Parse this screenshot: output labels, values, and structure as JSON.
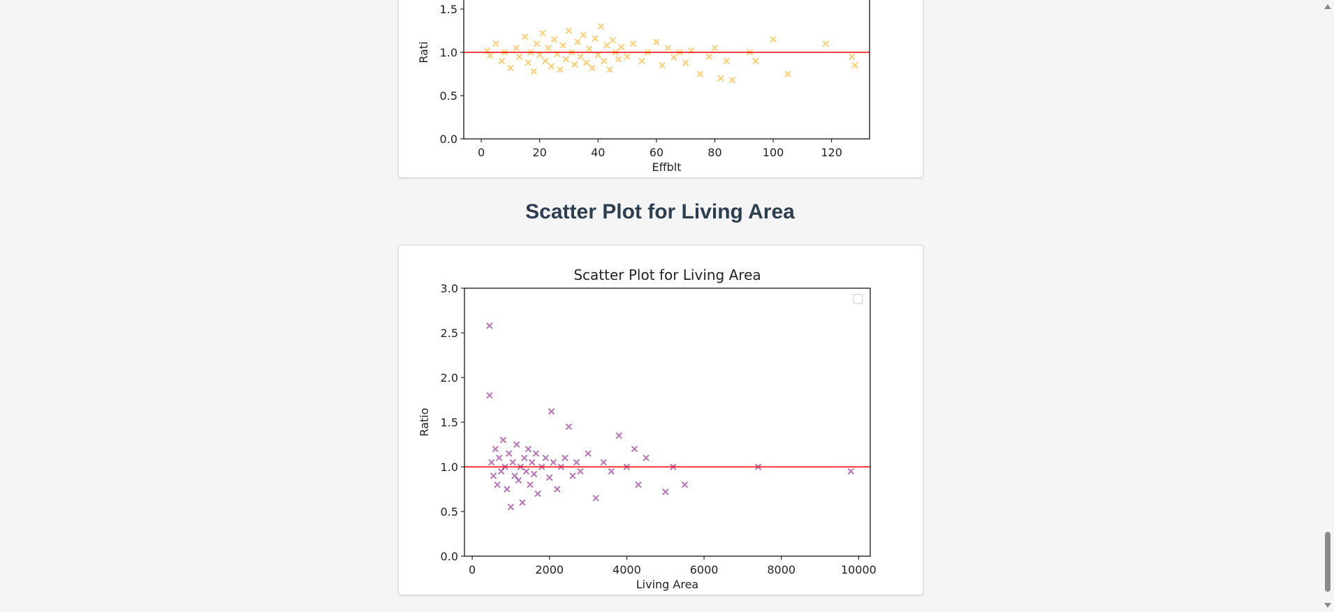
{
  "colors": {
    "page_bg": "#f5f5f5",
    "heading": "#2c3e50",
    "orange_series": "#ffa500",
    "purple_series": "#800080",
    "reference_line": "#ff0000"
  },
  "section2": {
    "heading": "Scatter Plot for Living Area"
  },
  "chart_data": [
    {
      "type": "scatter",
      "title": "",
      "xlabel": "Effblt",
      "ylabel": "Rati",
      "xlim": [
        -6,
        133
      ],
      "ylim": [
        0,
        2.0
      ],
      "xticks": [
        "0",
        "20",
        "40",
        "60",
        "80",
        "100",
        "120"
      ],
      "yticks": [
        "0.0",
        "0.5",
        "1.0",
        "1.5"
      ],
      "marker": "x",
      "reference_line_y": 1.0,
      "series": [
        {
          "color": "#ffa500",
          "points": [
            [
              2,
              1.02
            ],
            [
              3,
              0.96
            ],
            [
              5,
              1.1
            ],
            [
              7,
              0.9
            ],
            [
              8,
              1.0
            ],
            [
              10,
              0.82
            ],
            [
              12,
              1.05
            ],
            [
              13,
              0.95
            ],
            [
              15,
              1.18
            ],
            [
              16,
              0.88
            ],
            [
              17,
              1.0
            ],
            [
              18,
              0.78
            ],
            [
              19,
              1.1
            ],
            [
              20,
              0.97
            ],
            [
              21,
              1.22
            ],
            [
              22,
              0.9
            ],
            [
              23,
              1.05
            ],
            [
              24,
              0.84
            ],
            [
              25,
              1.15
            ],
            [
              26,
              0.98
            ],
            [
              27,
              0.8
            ],
            [
              28,
              1.08
            ],
            [
              29,
              0.92
            ],
            [
              30,
              1.25
            ],
            [
              31,
              1.0
            ],
            [
              32,
              0.86
            ],
            [
              33,
              1.12
            ],
            [
              34,
              0.95
            ],
            [
              35,
              1.2
            ],
            [
              36,
              0.88
            ],
            [
              37,
              1.04
            ],
            [
              38,
              0.82
            ],
            [
              39,
              1.16
            ],
            [
              40,
              0.97
            ],
            [
              41,
              1.3
            ],
            [
              42,
              0.9
            ],
            [
              43,
              1.08
            ],
            [
              44,
              0.8
            ],
            [
              45,
              1.14
            ],
            [
              46,
              1.0
            ],
            [
              47,
              0.92
            ],
            [
              48,
              1.06
            ],
            [
              50,
              0.95
            ],
            [
              52,
              1.1
            ],
            [
              55,
              0.9
            ],
            [
              57,
              1.0
            ],
            [
              60,
              1.12
            ],
            [
              62,
              0.85
            ],
            [
              64,
              1.05
            ],
            [
              66,
              0.94
            ],
            [
              68,
              1.0
            ],
            [
              70,
              0.88
            ],
            [
              72,
              1.02
            ],
            [
              75,
              0.75
            ],
            [
              78,
              0.95
            ],
            [
              80,
              1.05
            ],
            [
              82,
              0.7
            ],
            [
              84,
              0.9
            ],
            [
              86,
              0.68
            ],
            [
              92,
              1.0
            ],
            [
              94,
              0.9
            ],
            [
              100,
              1.15
            ],
            [
              105,
              0.75
            ],
            [
              118,
              1.1
            ],
            [
              127,
              0.95
            ],
            [
              128,
              0.85
            ]
          ]
        }
      ]
    },
    {
      "type": "scatter",
      "title": "Scatter Plot for Living Area",
      "xlabel": "Living Area",
      "ylabel": "Ratio",
      "xlim": [
        -200,
        10300
      ],
      "ylim": [
        0,
        3.0
      ],
      "xticks": [
        "0",
        "2000",
        "4000",
        "6000",
        "8000",
        "10000"
      ],
      "yticks": [
        "0.0",
        "0.5",
        "1.0",
        "1.5",
        "2.0",
        "2.5",
        "3.0"
      ],
      "marker": "x",
      "reference_line_y": 1.0,
      "legend": "top-right (empty)",
      "series": [
        {
          "color": "#800080",
          "points": [
            [
              450,
              2.58
            ],
            [
              450,
              1.8
            ],
            [
              500,
              1.05
            ],
            [
              550,
              0.9
            ],
            [
              600,
              1.2
            ],
            [
              650,
              0.8
            ],
            [
              700,
              1.1
            ],
            [
              750,
              0.95
            ],
            [
              800,
              1.3
            ],
            [
              850,
              1.0
            ],
            [
              900,
              0.75
            ],
            [
              950,
              1.15
            ],
            [
              1000,
              0.55
            ],
            [
              1050,
              1.05
            ],
            [
              1100,
              0.9
            ],
            [
              1150,
              1.25
            ],
            [
              1200,
              0.85
            ],
            [
              1250,
              1.0
            ],
            [
              1300,
              0.6
            ],
            [
              1350,
              1.1
            ],
            [
              1400,
              0.95
            ],
            [
              1450,
              1.2
            ],
            [
              1500,
              0.8
            ],
            [
              1550,
              1.05
            ],
            [
              1600,
              0.92
            ],
            [
              1650,
              1.15
            ],
            [
              1700,
              0.7
            ],
            [
              1800,
              1.0
            ],
            [
              1900,
              1.1
            ],
            [
              2000,
              0.88
            ],
            [
              2050,
              1.62
            ],
            [
              2100,
              1.05
            ],
            [
              2200,
              0.75
            ],
            [
              2300,
              1.0
            ],
            [
              2400,
              1.1
            ],
            [
              2500,
              1.45
            ],
            [
              2600,
              0.9
            ],
            [
              2700,
              1.05
            ],
            [
              2800,
              0.95
            ],
            [
              3000,
              1.15
            ],
            [
              3200,
              0.65
            ],
            [
              3400,
              1.05
            ],
            [
              3600,
              0.95
            ],
            [
              3800,
              1.35
            ],
            [
              4000,
              1.0
            ],
            [
              4200,
              1.2
            ],
            [
              4300,
              0.8
            ],
            [
              4500,
              1.1
            ],
            [
              5000,
              0.72
            ],
            [
              5200,
              1.0
            ],
            [
              5500,
              0.8
            ],
            [
              7400,
              1.0
            ],
            [
              9800,
              0.95
            ]
          ]
        }
      ]
    }
  ]
}
